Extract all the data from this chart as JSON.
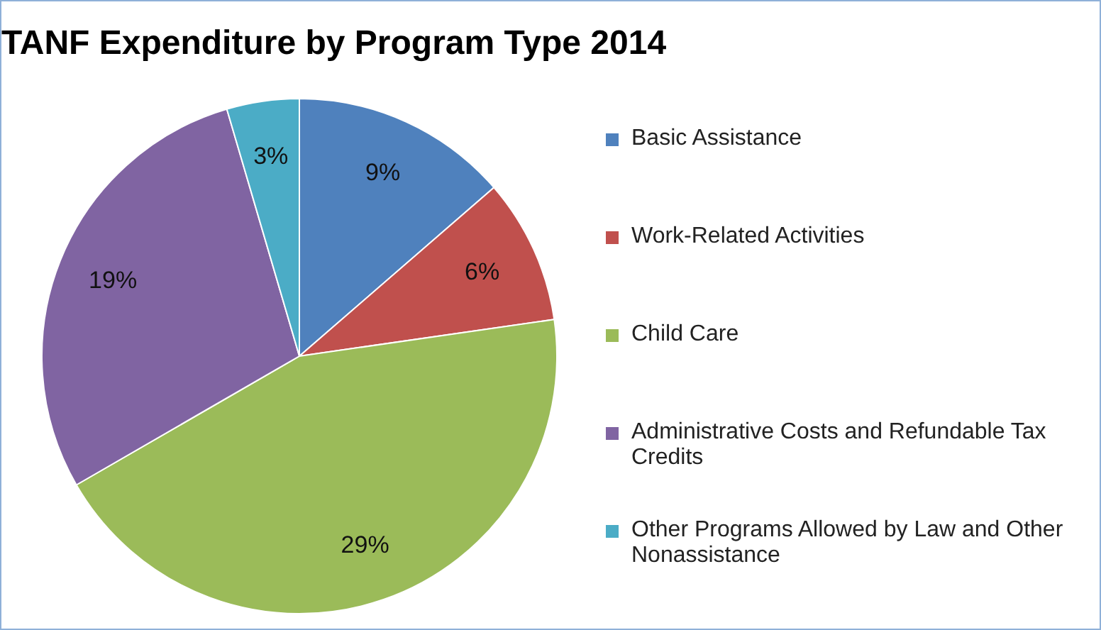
{
  "chart_data": {
    "type": "pie",
    "title": "TANF Expenditure by Program Type 2014",
    "categories": [
      "Basic Assistance",
      "Work-Related Activities",
      "Child Care",
      "Administrative Costs and Refundable Tax Credits",
      "Other Programs Allowed by Law and Other Nonassistance"
    ],
    "values": [
      9,
      6,
      29,
      19,
      3
    ],
    "colors": [
      "#4f81bd",
      "#c0504d",
      "#9bbb59",
      "#8064a2",
      "#4bacc6"
    ],
    "value_labels": [
      "9%",
      "6%",
      "29%",
      "19%",
      "3%"
    ],
    "legend": "right"
  }
}
